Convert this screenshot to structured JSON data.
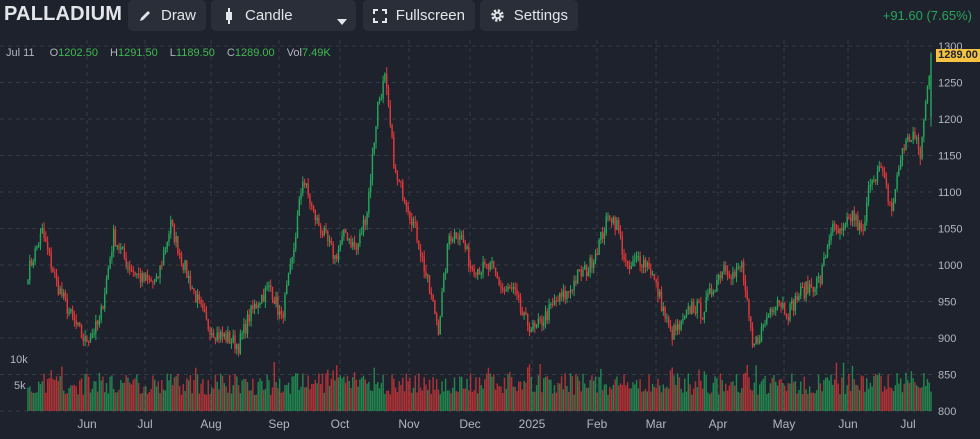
{
  "toolbar": {
    "symbol": "PALLADIUM",
    "draw_label": "Draw",
    "candle_label": "Candle",
    "fullscreen_label": "Fullscreen",
    "settings_label": "Settings",
    "change_text": "+91.60 (7.65%)"
  },
  "ohlc": {
    "date": "Jul 11",
    "o_label": "O",
    "o": "1202.50",
    "h_label": "H",
    "h": "1291.50",
    "l_label": "L",
    "l": "1189.50",
    "c_label": "C",
    "c": "1289.00",
    "vol_label": "Vol",
    "vol": "7.49K"
  },
  "price_tag": "1289.00",
  "colors": {
    "up": "#26a65b",
    "down": "#e0393a",
    "bg": "#1e222d",
    "grid": "#363a45"
  },
  "chart_data": {
    "type": "candlestick",
    "price_ticks": [
      "1300",
      "1250",
      "1200",
      "1150",
      "1100",
      "1050",
      "1000",
      "950",
      "900",
      "850",
      "800"
    ],
    "price_tick_values": [
      1300,
      1250,
      1200,
      1150,
      1100,
      1050,
      1000,
      950,
      900,
      850,
      800
    ],
    "volume_ticks": [
      "10k",
      "5k"
    ],
    "x_ticks": [
      "Jun",
      "Jul",
      "Aug",
      "Sep",
      "Oct",
      "Nov",
      "Dec",
      "2025",
      "Feb",
      "Mar",
      "Apr",
      "May",
      "Jun",
      "Jul"
    ],
    "anchors": [
      [
        0,
        990
      ],
      [
        8,
        1045
      ],
      [
        16,
        975
      ],
      [
        25,
        925
      ],
      [
        32,
        895
      ],
      [
        40,
        920
      ],
      [
        48,
        1040
      ],
      [
        56,
        1000
      ],
      [
        64,
        980
      ],
      [
        72,
        975
      ],
      [
        80,
        1055
      ],
      [
        88,
        995
      ],
      [
        95,
        950
      ],
      [
        100,
        920
      ],
      [
        106,
        905
      ],
      [
        112,
        900
      ],
      [
        118,
        890
      ],
      [
        124,
        930
      ],
      [
        130,
        955
      ],
      [
        136,
        970
      ],
      [
        142,
        925
      ],
      [
        148,
        1005
      ],
      [
        154,
        1120
      ],
      [
        160,
        1070
      ],
      [
        166,
        1040
      ],
      [
        172,
        1010
      ],
      [
        178,
        1045
      ],
      [
        184,
        1020
      ],
      [
        190,
        1075
      ],
      [
        196,
        1220
      ],
      [
        200,
        1255
      ],
      [
        206,
        1120
      ],
      [
        212,
        1090
      ],
      [
        218,
        1040
      ],
      [
        224,
        975
      ],
      [
        230,
        915
      ],
      [
        236,
        1040
      ],
      [
        242,
        1045
      ],
      [
        248,
        1000
      ],
      [
        254,
        995
      ],
      [
        260,
        995
      ],
      [
        266,
        965
      ],
      [
        272,
        965
      ],
      [
        278,
        925
      ],
      [
        284,
        910
      ],
      [
        290,
        930
      ],
      [
        296,
        950
      ],
      [
        302,
        960
      ],
      [
        308,
        985
      ],
      [
        314,
        995
      ],
      [
        320,
        1030
      ],
      [
        326,
        1070
      ],
      [
        330,
        1055
      ],
      [
        336,
        990
      ],
      [
        342,
        1010
      ],
      [
        348,
        1000
      ],
      [
        354,
        955
      ],
      [
        360,
        905
      ],
      [
        366,
        915
      ],
      [
        372,
        945
      ],
      [
        378,
        935
      ],
      [
        384,
        970
      ],
      [
        390,
        1000
      ],
      [
        396,
        985
      ],
      [
        400,
        1000
      ],
      [
        406,
        885
      ],
      [
        412,
        915
      ],
      [
        416,
        940
      ],
      [
        420,
        955
      ],
      [
        426,
        935
      ],
      [
        432,
        960
      ],
      [
        438,
        970
      ],
      [
        444,
        980
      ],
      [
        450,
        1050
      ],
      [
        456,
        1040
      ],
      [
        462,
        1070
      ],
      [
        468,
        1040
      ],
      [
        472,
        1120
      ],
      [
        478,
        1130
      ],
      [
        484,
        1075
      ],
      [
        490,
        1160
      ],
      [
        496,
        1180
      ],
      [
        500,
        1150
      ],
      [
        506,
        1290
      ]
    ]
  }
}
